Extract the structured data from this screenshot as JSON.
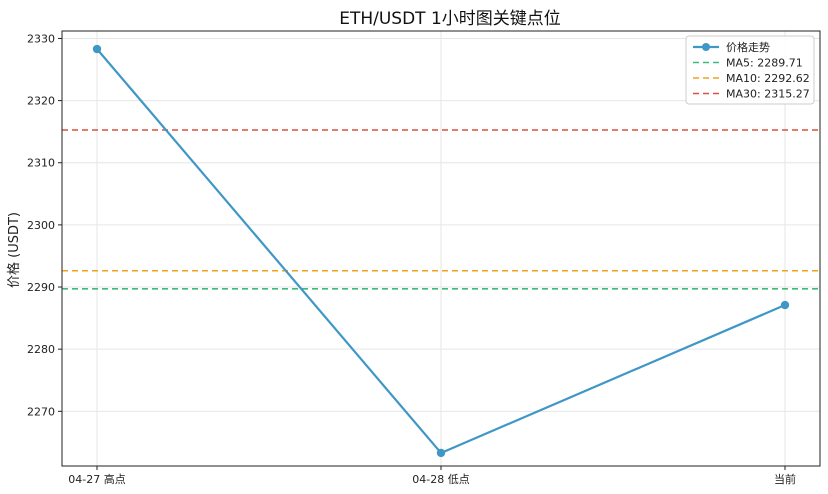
{
  "chart_data": {
    "type": "line",
    "title": "ETH/USDT 1小时图关键点位",
    "xlabel": "",
    "ylabel": "价格 (USDT)",
    "categories": [
      "04-27 高点",
      "04-28 低点",
      "当前"
    ],
    "ylim": [
      2261.2,
      2331.2
    ],
    "yticks": [
      2270,
      2280,
      2290,
      2300,
      2310,
      2320,
      2330
    ],
    "grid": true,
    "legend_position": "top-right",
    "series": [
      {
        "name": "价格走势",
        "values": [
          2328.3,
          2263.3,
          2287.1
        ],
        "color": "#3f97c6",
        "style": "solid-marker"
      }
    ],
    "hlines": [
      {
        "name": "MA5: 2289.71",
        "value": 2289.71,
        "color": "#3dba7a"
      },
      {
        "name": "MA10: 2292.62",
        "value": 2292.62,
        "color": "#f0a21d"
      },
      {
        "name": "MA30: 2315.27",
        "value": 2315.27,
        "color": "#d9503f"
      }
    ]
  }
}
